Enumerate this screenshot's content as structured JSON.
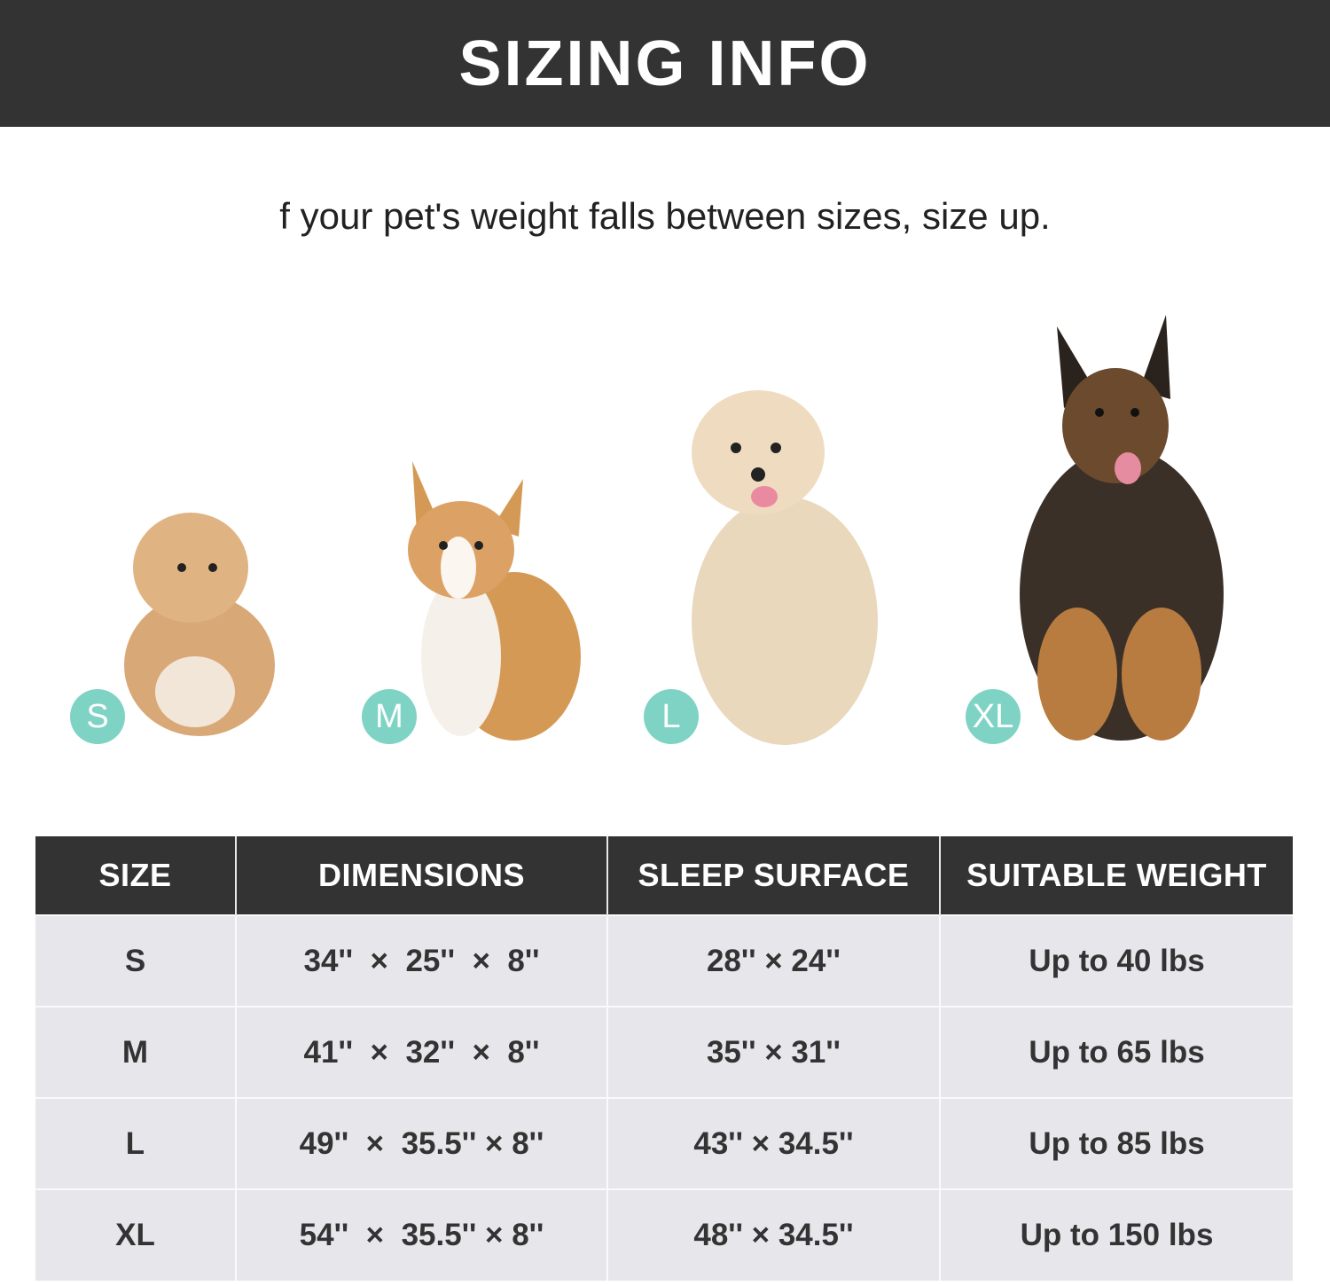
{
  "header": {
    "title": "SIZING INFO"
  },
  "subtitle": "f your pet's weight falls between sizes, size up.",
  "badge_color": "#7fd3c4",
  "dogs": [
    {
      "badge": "S",
      "image": "havanese-puppy"
    },
    {
      "badge": "M",
      "image": "corgi"
    },
    {
      "badge": "L",
      "image": "golden-retriever"
    },
    {
      "badge": "XL",
      "image": "german-shepherd"
    }
  ],
  "table": {
    "headers": [
      "SIZE",
      "DIMENSIONS",
      "SLEEP SURFACE",
      "SUITABLE WEIGHT"
    ],
    "rows": [
      [
        "S",
        "34''  ×  25''  ×  8''",
        "28'' × 24''",
        "Up to 40 lbs"
      ],
      [
        "M",
        "41''  ×  32''  ×  8''",
        "35'' × 31''",
        "Up to 65 lbs"
      ],
      [
        "L",
        "49''  ×  35.5'' × 8''",
        "43'' × 34.5''",
        "Up to 85 lbs"
      ],
      [
        "XL",
        "54''  ×  35.5'' × 8''",
        "48'' × 34.5''",
        "Up to 150 lbs"
      ]
    ]
  }
}
